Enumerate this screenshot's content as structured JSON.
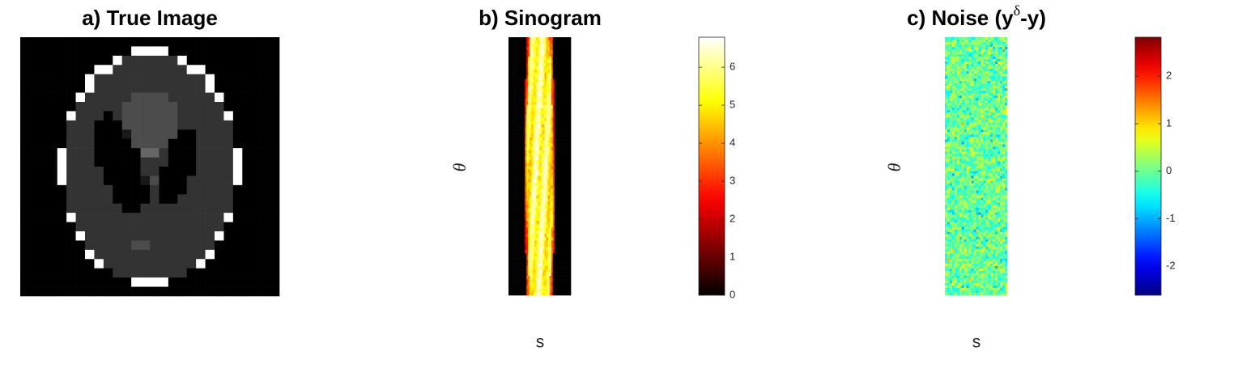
{
  "chart_data": [
    {
      "type": "image",
      "title": "a) True Image",
      "colormap": "gray"
    },
    {
      "type": "heatmap",
      "title": "b) Sinogram",
      "xlabel": "s",
      "ylabel": "θ",
      "colormap": "hot",
      "colorbar": {
        "ylim": [
          0,
          6.79
        ],
        "yticks": [
          0,
          1,
          2,
          3,
          4,
          5,
          6
        ]
      }
    },
    {
      "type": "heatmap",
      "title": [
        "c) Noise (y",
        "δ",
        "-y)"
      ],
      "xlabel": "s",
      "ylabel": "θ",
      "colormap": "jet",
      "colorbar": {
        "ylim": [
          -2.61,
          2.82
        ],
        "yticks": [
          -2,
          -1,
          0,
          1,
          2
        ]
      }
    }
  ]
}
